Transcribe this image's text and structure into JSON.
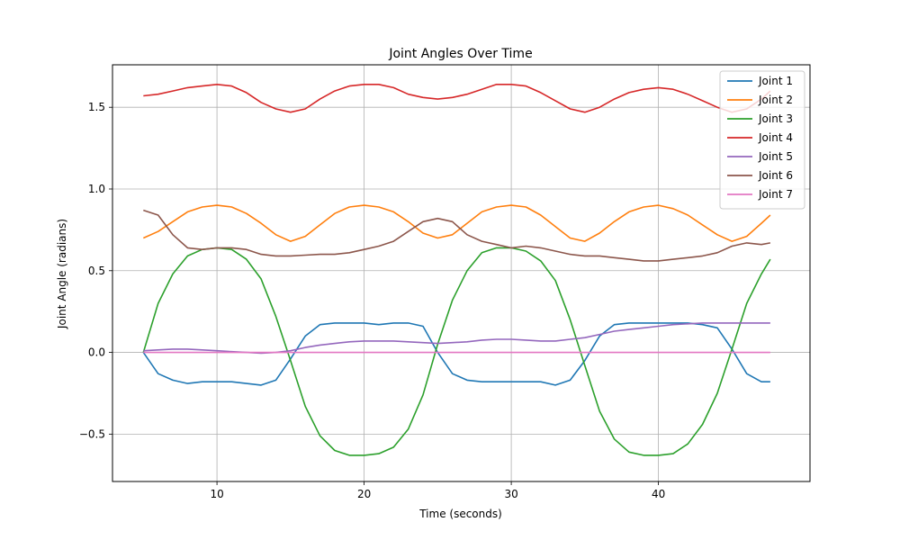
{
  "chart_data": {
    "type": "line",
    "title": "Joint Angles Over Time",
    "xlabel": "Time (seconds)",
    "ylabel": "Joint Angle (radians)",
    "xlim": [
      2.9,
      50.3
    ],
    "ylim": [
      -0.79,
      1.76
    ],
    "xticks": [
      10,
      20,
      30,
      40
    ],
    "yticks": [
      -0.5,
      0.0,
      0.5,
      1.0,
      1.5
    ],
    "xtick_labels": [
      "10",
      "20",
      "30",
      "40"
    ],
    "ytick_labels": [
      "−0.5",
      "0.0",
      "0.5",
      "1.0",
      "1.5"
    ],
    "grid": true,
    "legend_position": "top-right",
    "series": [
      {
        "name": "Joint 1",
        "color": "#1f77b4",
        "x": [
          5,
          6,
          7,
          8,
          9,
          10,
          11,
          12,
          13,
          14,
          15,
          16,
          17,
          18,
          19,
          20,
          21,
          22,
          23,
          24,
          25,
          26,
          27,
          28,
          29,
          30,
          31,
          32,
          33,
          34,
          35,
          36,
          37,
          38,
          39,
          40,
          41,
          42,
          43,
          44,
          45,
          46,
          47,
          47.6
        ],
        "y": [
          0.0,
          -0.13,
          -0.17,
          -0.19,
          -0.18,
          -0.18,
          -0.18,
          -0.19,
          -0.2,
          -0.17,
          -0.04,
          0.1,
          0.17,
          0.18,
          0.18,
          0.18,
          0.17,
          0.18,
          0.18,
          0.16,
          0.0,
          -0.13,
          -0.17,
          -0.18,
          -0.18,
          -0.18,
          -0.18,
          -0.18,
          -0.2,
          -0.17,
          -0.05,
          0.1,
          0.17,
          0.18,
          0.18,
          0.18,
          0.18,
          0.18,
          0.17,
          0.15,
          0.02,
          -0.13,
          -0.18,
          -0.18
        ]
      },
      {
        "name": "Joint 2",
        "color": "#ff7f0e",
        "x": [
          5,
          6,
          7,
          8,
          9,
          10,
          11,
          12,
          13,
          14,
          15,
          16,
          17,
          18,
          19,
          20,
          21,
          22,
          23,
          24,
          25,
          26,
          27,
          28,
          29,
          30,
          31,
          32,
          33,
          34,
          35,
          36,
          37,
          38,
          39,
          40,
          41,
          42,
          43,
          44,
          45,
          46,
          47,
          47.6
        ],
        "y": [
          0.7,
          0.74,
          0.8,
          0.86,
          0.89,
          0.9,
          0.89,
          0.85,
          0.79,
          0.72,
          0.68,
          0.71,
          0.78,
          0.85,
          0.89,
          0.9,
          0.89,
          0.86,
          0.8,
          0.73,
          0.7,
          0.72,
          0.79,
          0.86,
          0.89,
          0.9,
          0.89,
          0.84,
          0.77,
          0.7,
          0.68,
          0.73,
          0.8,
          0.86,
          0.89,
          0.9,
          0.88,
          0.84,
          0.78,
          0.72,
          0.68,
          0.71,
          0.79,
          0.84
        ]
      },
      {
        "name": "Joint 3",
        "color": "#2ca02c",
        "x": [
          5,
          6,
          7,
          8,
          9,
          10,
          11,
          12,
          13,
          14,
          15,
          16,
          17,
          18,
          19,
          20,
          21,
          22,
          23,
          24,
          25,
          26,
          27,
          28,
          29,
          30,
          31,
          32,
          33,
          34,
          35,
          36,
          37,
          38,
          39,
          40,
          41,
          42,
          43,
          44,
          45,
          46,
          47,
          47.6
        ],
        "y": [
          0.0,
          0.3,
          0.48,
          0.59,
          0.63,
          0.64,
          0.63,
          0.57,
          0.45,
          0.22,
          -0.05,
          -0.33,
          -0.51,
          -0.6,
          -0.63,
          -0.63,
          -0.62,
          -0.58,
          -0.47,
          -0.26,
          0.05,
          0.32,
          0.5,
          0.61,
          0.64,
          0.64,
          0.62,
          0.56,
          0.44,
          0.2,
          -0.08,
          -0.36,
          -0.53,
          -0.61,
          -0.63,
          -0.63,
          -0.62,
          -0.56,
          -0.44,
          -0.25,
          0.02,
          0.3,
          0.48,
          0.57
        ]
      },
      {
        "name": "Joint 4",
        "color": "#d62728",
        "x": [
          5,
          6,
          7,
          8,
          9,
          10,
          11,
          12,
          13,
          14,
          15,
          16,
          17,
          18,
          19,
          20,
          21,
          22,
          23,
          24,
          25,
          26,
          27,
          28,
          29,
          30,
          31,
          32,
          33,
          34,
          35,
          36,
          37,
          38,
          39,
          40,
          41,
          42,
          43,
          44,
          45,
          46,
          47,
          47.6
        ],
        "y": [
          1.57,
          1.58,
          1.6,
          1.62,
          1.63,
          1.64,
          1.63,
          1.59,
          1.53,
          1.49,
          1.47,
          1.49,
          1.55,
          1.6,
          1.63,
          1.64,
          1.64,
          1.62,
          1.58,
          1.56,
          1.55,
          1.56,
          1.58,
          1.61,
          1.64,
          1.64,
          1.63,
          1.59,
          1.54,
          1.49,
          1.47,
          1.5,
          1.55,
          1.59,
          1.61,
          1.62,
          1.61,
          1.58,
          1.54,
          1.5,
          1.47,
          1.49,
          1.55,
          1.6
        ]
      },
      {
        "name": "Joint 5",
        "color": "#9467bd",
        "x": [
          5,
          6,
          7,
          8,
          9,
          10,
          11,
          12,
          13,
          14,
          15,
          16,
          17,
          18,
          19,
          20,
          21,
          22,
          23,
          24,
          25,
          26,
          27,
          28,
          29,
          30,
          31,
          32,
          33,
          34,
          35,
          36,
          37,
          38,
          39,
          40,
          41,
          42,
          43,
          44,
          45,
          46,
          47,
          47.6
        ],
        "y": [
          0.01,
          0.015,
          0.02,
          0.02,
          0.015,
          0.01,
          0.005,
          0.0,
          -0.005,
          0.0,
          0.01,
          0.03,
          0.045,
          0.055,
          0.065,
          0.07,
          0.07,
          0.07,
          0.065,
          0.06,
          0.055,
          0.06,
          0.065,
          0.075,
          0.08,
          0.08,
          0.075,
          0.07,
          0.07,
          0.08,
          0.09,
          0.11,
          0.13,
          0.14,
          0.15,
          0.16,
          0.17,
          0.175,
          0.18,
          0.18,
          0.18,
          0.18,
          0.18,
          0.18
        ]
      },
      {
        "name": "Joint 6",
        "color": "#8c564b",
        "x": [
          5,
          6,
          7,
          8,
          9,
          10,
          11,
          12,
          13,
          14,
          15,
          16,
          17,
          18,
          19,
          20,
          21,
          22,
          23,
          24,
          25,
          26,
          27,
          28,
          29,
          30,
          31,
          32,
          33,
          34,
          35,
          36,
          37,
          38,
          39,
          40,
          41,
          42,
          43,
          44,
          45,
          46,
          47,
          47.6
        ],
        "y": [
          0.87,
          0.84,
          0.72,
          0.64,
          0.63,
          0.64,
          0.64,
          0.63,
          0.6,
          0.59,
          0.59,
          0.595,
          0.6,
          0.6,
          0.61,
          0.63,
          0.65,
          0.68,
          0.74,
          0.8,
          0.82,
          0.8,
          0.72,
          0.68,
          0.66,
          0.64,
          0.65,
          0.64,
          0.62,
          0.6,
          0.59,
          0.59,
          0.58,
          0.57,
          0.56,
          0.56,
          0.57,
          0.58,
          0.59,
          0.61,
          0.65,
          0.67,
          0.66,
          0.67
        ]
      },
      {
        "name": "Joint 7",
        "color": "#e377c2",
        "x": [
          5,
          10,
          15,
          20,
          25,
          30,
          35,
          40,
          45,
          47.6
        ],
        "y": [
          0.0,
          0.0,
          0.0,
          0.0,
          0.0,
          0.0,
          0.0,
          0.0,
          0.0,
          0.0
        ]
      }
    ]
  }
}
